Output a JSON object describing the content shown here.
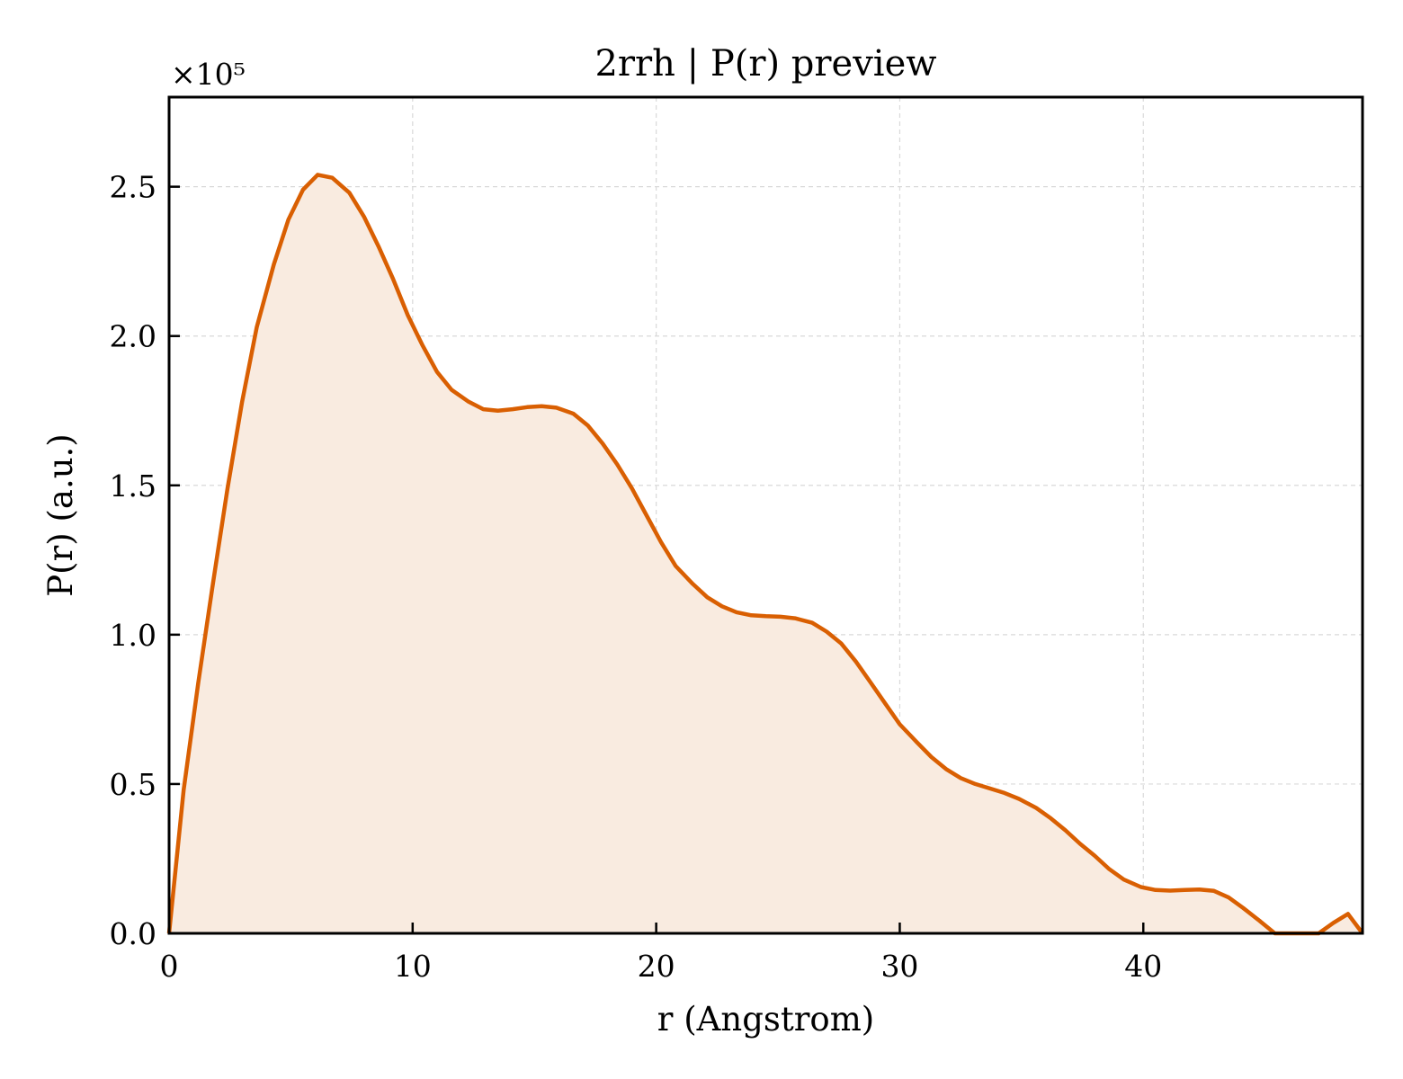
{
  "chart_data": {
    "type": "area",
    "title": "2rrh | P(r) preview",
    "xlabel": "r (Angstrom)",
    "ylabel": "P(r) (a.u.)",
    "y_offset_label": "×10⁵",
    "y_multiplier": 100000,
    "xlim": [
      0,
      49
    ],
    "ylim": [
      0,
      2.8
    ],
    "xticks": [
      "0",
      "10",
      "20",
      "30",
      "40"
    ],
    "xtick_values": [
      0,
      10,
      20,
      30,
      40
    ],
    "yticks": [
      "0.0",
      "0.5",
      "1.0",
      "1.5",
      "2.0",
      "2.5"
    ],
    "ytick_values": [
      0,
      0.5,
      1.0,
      1.5,
      2.0,
      2.5
    ],
    "grid": true,
    "colors": {
      "line": "#d95f02",
      "fill": "#f9ebe0",
      "grid": "#d9d9d9"
    },
    "series": [
      {
        "x": [
          0,
          0.6,
          1.2,
          1.8,
          2.4,
          3.0,
          3.6,
          4.3,
          4.9,
          5.5,
          6.1,
          6.7,
          7.4,
          8.0,
          8.6,
          9.2,
          9.8,
          10.4,
          11.0,
          11.6,
          12.3,
          12.9,
          13.5,
          14.1,
          14.7,
          15.3,
          15.9,
          16.6,
          17.2,
          17.8,
          18.4,
          19.0,
          19.6,
          20.2,
          20.8,
          21.5,
          22.1,
          22.7,
          23.3,
          23.9,
          24.5,
          25.1,
          25.7,
          26.4,
          27.0,
          27.6,
          28.2,
          28.8,
          29.4,
          30.0,
          30.7,
          31.3,
          31.9,
          32.5,
          33.1,
          33.7,
          34.3,
          34.9,
          35.6,
          36.2,
          36.8,
          37.4,
          38.0,
          38.6,
          39.2,
          39.9,
          40.5,
          41.1,
          41.7,
          42.3,
          42.9,
          43.5,
          44.1,
          44.8,
          45.4,
          46.0,
          46.6,
          47.2,
          47.8,
          48.4,
          49.0
        ],
        "values": [
          0.0,
          0.48,
          0.84,
          1.17,
          1.49,
          1.78,
          2.03,
          2.24,
          2.39,
          2.49,
          2.54,
          2.53,
          2.48,
          2.4,
          2.3,
          2.19,
          2.07,
          1.97,
          1.88,
          1.82,
          1.78,
          1.755,
          1.75,
          1.755,
          1.762,
          1.765,
          1.76,
          1.74,
          1.7,
          1.64,
          1.57,
          1.49,
          1.4,
          1.31,
          1.23,
          1.17,
          1.125,
          1.095,
          1.075,
          1.065,
          1.062,
          1.06,
          1.055,
          1.04,
          1.01,
          0.97,
          0.91,
          0.84,
          0.77,
          0.7,
          0.64,
          0.59,
          0.55,
          0.52,
          0.5,
          0.485,
          0.47,
          0.45,
          0.42,
          0.385,
          0.345,
          0.3,
          0.26,
          0.215,
          0.18,
          0.155,
          0.145,
          0.143,
          0.145,
          0.147,
          0.142,
          0.12,
          0.085,
          0.04,
          0.0,
          -0.02,
          -0.02,
          0.0,
          0.035,
          0.065,
          0.0
        ]
      }
    ]
  }
}
